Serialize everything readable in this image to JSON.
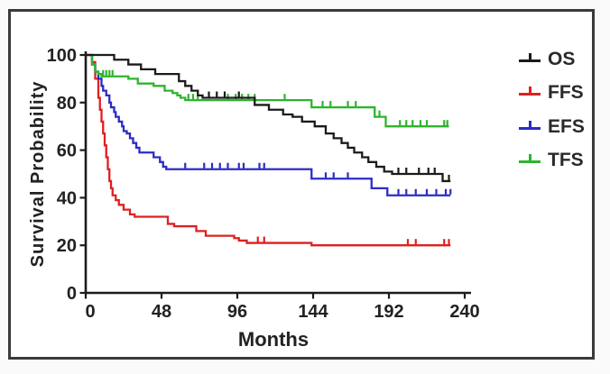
{
  "figure": {
    "outer_background": "#fafafa",
    "inner_background": "#ffffff",
    "frame_border_color": "#3a3a3a"
  },
  "chart_data": {
    "type": "line",
    "subtype": "kaplan-meier-step-curves",
    "title": "",
    "xlabel": "Months",
    "ylabel": "Survival Probability",
    "xlim": [
      0,
      240
    ],
    "ylim": [
      0,
      100
    ],
    "x_ticks": [
      0,
      48,
      96,
      144,
      192,
      240
    ],
    "y_ticks": [
      0,
      20,
      40,
      60,
      80,
      100
    ],
    "grid": false,
    "legend_position": "top-right",
    "axis_color": "#1c1c1c",
    "series": [
      {
        "name": "OS",
        "color": "#1b1b1b",
        "end_month": 231,
        "steps": [
          [
            0,
            100
          ],
          [
            18,
            98
          ],
          [
            27,
            96
          ],
          [
            35,
            94
          ],
          [
            44,
            92
          ],
          [
            59,
            89
          ],
          [
            63,
            87
          ],
          [
            67,
            85
          ],
          [
            71,
            83
          ],
          [
            74,
            82
          ],
          [
            107,
            79
          ],
          [
            116,
            77
          ],
          [
            125,
            75
          ],
          [
            131,
            74
          ],
          [
            137,
            72
          ],
          [
            145,
            70
          ],
          [
            152,
            67
          ],
          [
            157,
            65
          ],
          [
            162,
            63
          ],
          [
            166,
            61
          ],
          [
            170,
            59
          ],
          [
            175,
            57
          ],
          [
            179,
            55
          ],
          [
            184,
            53
          ],
          [
            189,
            51
          ],
          [
            194,
            50
          ],
          [
            226,
            47
          ]
        ],
        "censor_marks": [
          [
            78,
            82
          ],
          [
            83,
            82
          ],
          [
            88,
            82
          ],
          [
            97,
            82
          ],
          [
            198,
            50
          ],
          [
            203,
            50
          ],
          [
            211,
            50
          ],
          [
            217,
            50
          ],
          [
            221,
            50
          ],
          [
            230,
            47
          ]
        ]
      },
      {
        "name": "FFS",
        "color": "#de2021",
        "end_month": 231,
        "steps": [
          [
            0,
            100
          ],
          [
            4,
            97
          ],
          [
            6,
            90
          ],
          [
            8,
            82
          ],
          [
            9,
            77
          ],
          [
            10,
            72
          ],
          [
            11,
            67
          ],
          [
            12,
            62
          ],
          [
            13,
            57
          ],
          [
            14,
            52
          ],
          [
            15,
            47
          ],
          [
            16,
            44
          ],
          [
            17,
            41
          ],
          [
            19,
            39
          ],
          [
            21,
            37
          ],
          [
            24,
            35
          ],
          [
            28,
            33
          ],
          [
            31,
            32
          ],
          [
            52,
            29
          ],
          [
            56,
            28
          ],
          [
            70,
            26
          ],
          [
            76,
            24
          ],
          [
            94,
            23
          ],
          [
            97,
            22
          ],
          [
            102,
            21
          ],
          [
            143,
            20
          ]
        ],
        "censor_marks": [
          [
            109,
            21
          ],
          [
            113,
            21
          ],
          [
            204,
            20
          ],
          [
            209,
            20
          ],
          [
            227,
            20
          ],
          [
            230,
            20
          ]
        ]
      },
      {
        "name": "EFS",
        "color": "#2c2cc4",
        "end_month": 231,
        "steps": [
          [
            0,
            100
          ],
          [
            4,
            96
          ],
          [
            6,
            93
          ],
          [
            8,
            90
          ],
          [
            10,
            87
          ],
          [
            11,
            85
          ],
          [
            13,
            83
          ],
          [
            15,
            80
          ],
          [
            16,
            78
          ],
          [
            18,
            76
          ],
          [
            19,
            74
          ],
          [
            21,
            72
          ],
          [
            23,
            70
          ],
          [
            24,
            68
          ],
          [
            26,
            67
          ],
          [
            28,
            65
          ],
          [
            30,
            63
          ],
          [
            32,
            61
          ],
          [
            34,
            59
          ],
          [
            43,
            57
          ],
          [
            47,
            55
          ],
          [
            49,
            53
          ],
          [
            51,
            52
          ],
          [
            143,
            48
          ],
          [
            181,
            44
          ],
          [
            191,
            41
          ]
        ],
        "censor_marks": [
          [
            63,
            52
          ],
          [
            75,
            52
          ],
          [
            80,
            52
          ],
          [
            85,
            52
          ],
          [
            90,
            52
          ],
          [
            97,
            52
          ],
          [
            100,
            52
          ],
          [
            110,
            52
          ],
          [
            113,
            52
          ],
          [
            152,
            48
          ],
          [
            157,
            48
          ],
          [
            166,
            48
          ],
          [
            198,
            41
          ],
          [
            203,
            41
          ],
          [
            209,
            41
          ],
          [
            216,
            41
          ],
          [
            222,
            41
          ],
          [
            228,
            41
          ],
          [
            231,
            41
          ]
        ]
      },
      {
        "name": "TFS",
        "color": "#2eb42e",
        "end_month": 230,
        "steps": [
          [
            0,
            100
          ],
          [
            4,
            96
          ],
          [
            6,
            93
          ],
          [
            8,
            92
          ],
          [
            10,
            91
          ],
          [
            27,
            90
          ],
          [
            33,
            88
          ],
          [
            43,
            87
          ],
          [
            50,
            85
          ],
          [
            55,
            84
          ],
          [
            58,
            83
          ],
          [
            60,
            82
          ],
          [
            63,
            81
          ],
          [
            143,
            78
          ],
          [
            183,
            74
          ],
          [
            190,
            70
          ]
        ],
        "censor_marks": [
          [
            11,
            91
          ],
          [
            13,
            91
          ],
          [
            15,
            91
          ],
          [
            17,
            91
          ],
          [
            65,
            81
          ],
          [
            68,
            81
          ],
          [
            71,
            81
          ],
          [
            90,
            81
          ],
          [
            95,
            81
          ],
          [
            99,
            81
          ],
          [
            103,
            81
          ],
          [
            107,
            81
          ],
          [
            126,
            81
          ],
          [
            150,
            78
          ],
          [
            155,
            78
          ],
          [
            166,
            78
          ],
          [
            171,
            78
          ],
          [
            186,
            74
          ],
          [
            199,
            70
          ],
          [
            203,
            70
          ],
          [
            207,
            70
          ],
          [
            212,
            70
          ],
          [
            216,
            70
          ],
          [
            227,
            70
          ],
          [
            229,
            70
          ]
        ]
      }
    ]
  },
  "legend": {
    "items": [
      {
        "label": "OS",
        "color": "#1b1b1b"
      },
      {
        "label": "FFS",
        "color": "#de2021"
      },
      {
        "label": "EFS",
        "color": "#2c2cc4"
      },
      {
        "label": "TFS",
        "color": "#2eb42e"
      }
    ]
  }
}
